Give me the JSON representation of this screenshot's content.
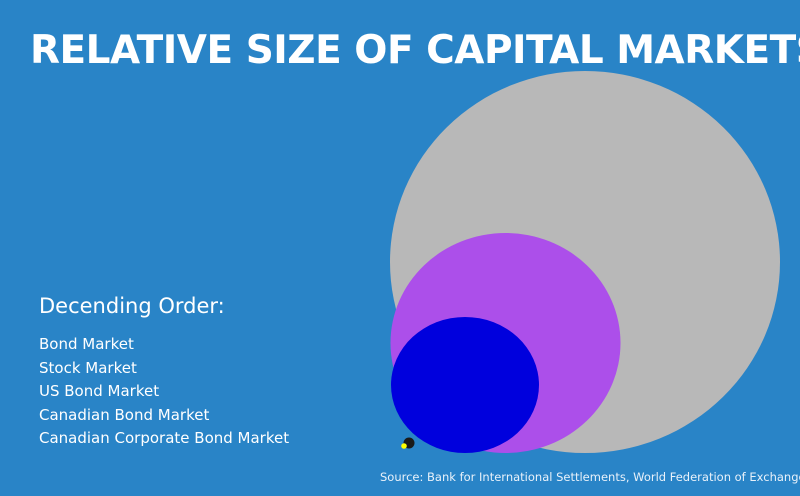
{
  "title": "RELATIVE SIZE OF CAPITAL MARKETS",
  "legend": {
    "heading": "Decending Order:",
    "items": [
      "Bond Market",
      "Stock Market",
      "US Bond Market",
      "Canadian Bond Market",
      "Canadian Corporate Bond Market"
    ]
  },
  "circles": [
    {
      "label": "Bond Market",
      "color": "#b8b8b8"
    },
    {
      "label": "Stock Market",
      "color": "#ac4fea"
    },
    {
      "label": "US Bond Market",
      "color": "#0000dd"
    },
    {
      "label": "Canadian Bond Market",
      "color": "#1a1a1a"
    },
    {
      "label": "Canadian Corporate Bond Market",
      "color": "#ffff00"
    }
  ],
  "source": "Source: Bank for International Settlements, World Federation of Exchanges",
  "colors": {
    "background": "#2984c7"
  }
}
